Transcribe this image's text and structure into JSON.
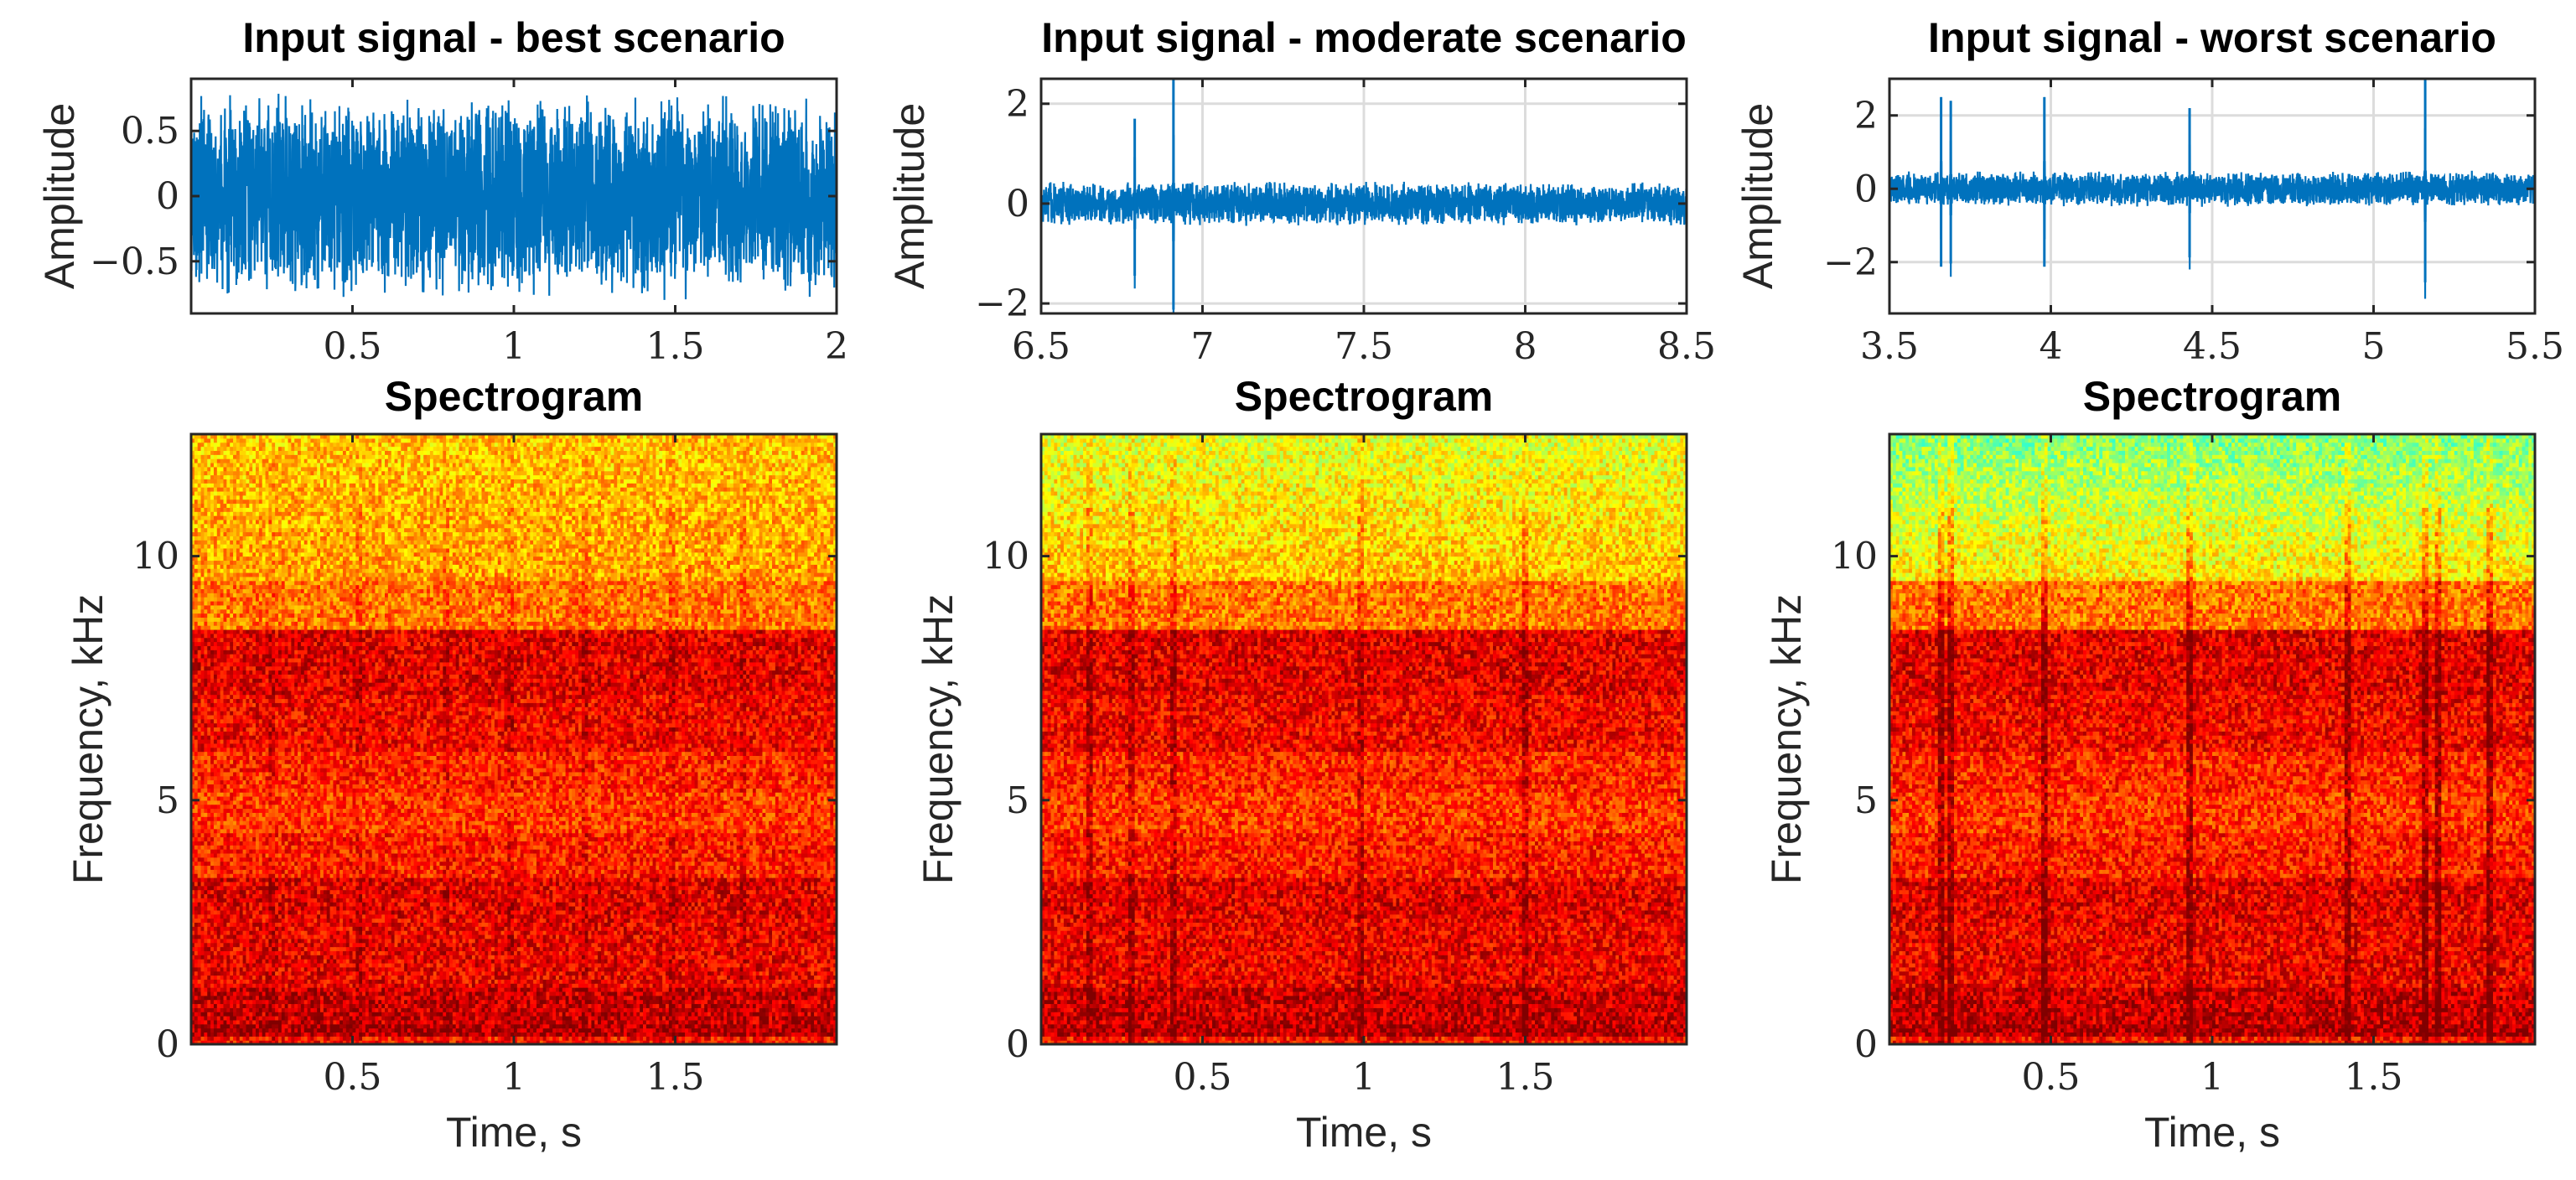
{
  "chart_data": [
    {
      "id": "ts_best",
      "type": "line",
      "title": "Input signal - best scenario",
      "xlabel": "",
      "ylabel": "Amplitude",
      "xlim": [
        0,
        2
      ],
      "ylim": [
        -0.9,
        0.9
      ],
      "xticks": [
        0.5,
        1,
        1.5,
        2
      ],
      "xtick_labels": [
        "0.5",
        "1",
        "1.5",
        "2"
      ],
      "yticks": [
        -0.5,
        0,
        0.5
      ],
      "ytick_labels": [
        "−0.5",
        "0",
        "0.5"
      ],
      "grid": false,
      "line_color": "#0072BD",
      "noise_amplitude": 0.8,
      "spikes": []
    },
    {
      "id": "ts_moderate",
      "type": "line",
      "title": "Input signal - moderate scenario",
      "xlabel": "",
      "ylabel": "Amplitude",
      "xlim": [
        6.5,
        8.5
      ],
      "ylim": [
        -2.2,
        2.5
      ],
      "xticks": [
        6.5,
        7,
        7.5,
        8,
        8.5
      ],
      "xtick_labels": [
        "6.5",
        "7",
        "7.5",
        "8",
        "8.5"
      ],
      "yticks": [
        -2,
        0,
        2
      ],
      "ytick_labels": [
        "−2",
        "0",
        "2"
      ],
      "grid": true,
      "line_color": "#0072BD",
      "noise_amplitude": 0.45,
      "spikes": [
        {
          "t": 6.79,
          "amp": 1.7
        },
        {
          "t": 6.91,
          "amp": 2.5
        }
      ]
    },
    {
      "id": "ts_worst",
      "type": "line",
      "title": "Input signal - worst scenario",
      "xlabel": "",
      "ylabel": "Amplitude",
      "xlim": [
        3.5,
        5.5
      ],
      "ylim": [
        -3.4,
        3.0
      ],
      "xticks": [
        3.5,
        4,
        4.5,
        5,
        5.5
      ],
      "xtick_labels": [
        "3.5",
        "4",
        "4.5",
        "5",
        "5.5"
      ],
      "yticks": [
        -2,
        0,
        2
      ],
      "ytick_labels": [
        "−2",
        "0",
        "2"
      ],
      "grid": true,
      "line_color": "#0072BD",
      "noise_amplitude": 0.5,
      "spikes": [
        {
          "t": 3.66,
          "amp": 2.5
        },
        {
          "t": 3.69,
          "amp": 2.4
        },
        {
          "t": 3.98,
          "amp": 2.5
        },
        {
          "t": 4.43,
          "amp": 2.2
        },
        {
          "t": 5.16,
          "amp": 3.0
        }
      ]
    },
    {
      "id": "spec_best",
      "type": "heatmap",
      "title": "Spectrogram",
      "xlabel": "Time, s",
      "ylabel": "Frequency, kHz",
      "xlim": [
        0,
        2
      ],
      "ylim": [
        0,
        12.5
      ],
      "xticks": [
        0.5,
        1,
        1.5
      ],
      "xtick_labels": [
        "0.5",
        "1",
        "1.5"
      ],
      "yticks": [
        0,
        5,
        10
      ],
      "ytick_labels": [
        "0",
        "5",
        "10"
      ],
      "colormap": "jet",
      "high_freq_level": 0.68,
      "transient_times": [
        0.25,
        0.52,
        0.79,
        0.99,
        1.22,
        1.49,
        1.71
      ],
      "transient_strength": 0.06
    },
    {
      "id": "spec_moderate",
      "type": "heatmap",
      "title": "Spectrogram",
      "xlabel": "Time, s",
      "ylabel": "Frequency, kHz",
      "xlim": [
        0,
        2
      ],
      "ylim": [
        0,
        12.5
      ],
      "xticks": [
        0.5,
        1,
        1.5
      ],
      "xtick_labels": [
        "0.5",
        "1",
        "1.5"
      ],
      "yticks": [
        0,
        5,
        10
      ],
      "ytick_labels": [
        "0",
        "5",
        "10"
      ],
      "colormap": "jet",
      "high_freq_level": 0.6,
      "transient_times": [
        0.15,
        0.28,
        0.41,
        0.99,
        1.5
      ],
      "transient_strength": 0.12
    },
    {
      "id": "spec_worst",
      "type": "heatmap",
      "title": "Spectrogram",
      "xlabel": "Time, s",
      "ylabel": "Frequency, kHz",
      "xlim": [
        0,
        2
      ],
      "ylim": [
        0,
        12.5
      ],
      "xticks": [
        0.5,
        1,
        1.5
      ],
      "xtick_labels": [
        "0.5",
        "1",
        "1.5"
      ],
      "yticks": [
        0,
        5,
        10
      ],
      "ytick_labels": [
        "0",
        "5",
        "10"
      ],
      "colormap": "jet",
      "high_freq_level": 0.5,
      "transient_times": [
        0.16,
        0.19,
        0.48,
        0.93,
        1.42,
        1.66,
        1.7,
        1.86
      ],
      "transient_strength": 0.18
    }
  ]
}
